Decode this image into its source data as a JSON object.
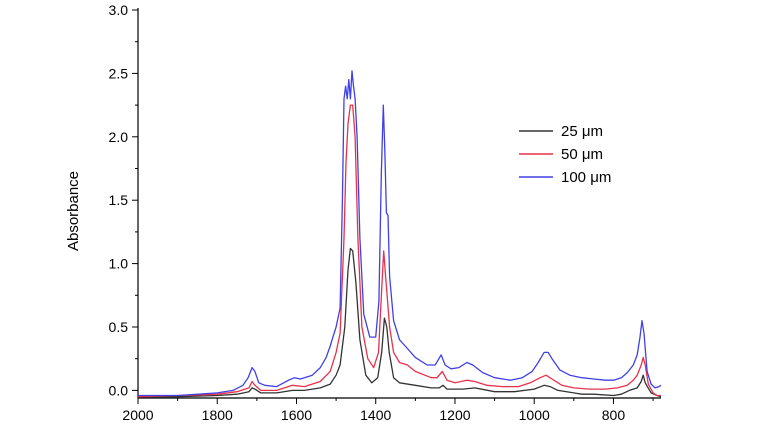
{
  "chart_data": {
    "type": "line",
    "title": "",
    "xlabel": "",
    "ylabel": "Absorbance",
    "xlim": [
      2000,
      680
    ],
    "ylim": [
      -0.06,
      3.0
    ],
    "x_reversed": true,
    "grid": false,
    "legend_position": "right",
    "x_ticks": [
      2000,
      1800,
      1600,
      1400,
      1200,
      1000,
      800
    ],
    "x_tick_labels": [
      "2000",
      "1800",
      "1600",
      "1400",
      "1200",
      "1000",
      "800"
    ],
    "y_ticks": [
      0.0,
      0.5,
      1.0,
      1.5,
      2.0,
      2.5,
      3.0
    ],
    "y_tick_labels": [
      "0.0",
      "0.5",
      "1.0",
      "1.5",
      "2.0",
      "2.5",
      "3.0"
    ],
    "series": [
      {
        "name": "25 μm",
        "color": "#333333",
        "points": [
          [
            2000,
            -0.05
          ],
          [
            1900,
            -0.05
          ],
          [
            1800,
            -0.04
          ],
          [
            1750,
            -0.03
          ],
          [
            1720,
            -0.01
          ],
          [
            1712,
            0.02
          ],
          [
            1705,
            0.01
          ],
          [
            1690,
            -0.02
          ],
          [
            1650,
            -0.02
          ],
          [
            1610,
            0.0
          ],
          [
            1580,
            0.0
          ],
          [
            1540,
            0.02
          ],
          [
            1515,
            0.05
          ],
          [
            1500,
            0.12
          ],
          [
            1490,
            0.2
          ],
          [
            1478,
            0.5
          ],
          [
            1470,
            0.95
          ],
          [
            1464,
            1.12
          ],
          [
            1458,
            1.1
          ],
          [
            1450,
            0.85
          ],
          [
            1440,
            0.4
          ],
          [
            1425,
            0.12
          ],
          [
            1410,
            0.06
          ],
          [
            1395,
            0.1
          ],
          [
            1385,
            0.3
          ],
          [
            1378,
            0.57
          ],
          [
            1372,
            0.5
          ],
          [
            1366,
            0.3
          ],
          [
            1355,
            0.1
          ],
          [
            1340,
            0.06
          ],
          [
            1300,
            0.04
          ],
          [
            1260,
            0.02
          ],
          [
            1240,
            0.02
          ],
          [
            1230,
            0.04
          ],
          [
            1220,
            0.01
          ],
          [
            1180,
            0.01
          ],
          [
            1150,
            0.02
          ],
          [
            1100,
            -0.01
          ],
          [
            1050,
            -0.01
          ],
          [
            1000,
            0.01
          ],
          [
            975,
            0.04
          ],
          [
            960,
            0.03
          ],
          [
            940,
            0.0
          ],
          [
            900,
            -0.02
          ],
          [
            880,
            -0.03
          ],
          [
            850,
            -0.03
          ],
          [
            800,
            -0.04
          ],
          [
            780,
            -0.03
          ],
          [
            760,
            0.0
          ],
          [
            740,
            0.02
          ],
          [
            730,
            0.07
          ],
          [
            725,
            0.12
          ],
          [
            720,
            0.06
          ],
          [
            705,
            -0.02
          ],
          [
            690,
            -0.04
          ],
          [
            680,
            -0.05
          ]
        ]
      },
      {
        "name": "50 μm",
        "color": "#e8314a",
        "points": [
          [
            2000,
            -0.05
          ],
          [
            1900,
            -0.04
          ],
          [
            1800,
            -0.03
          ],
          [
            1750,
            -0.01
          ],
          [
            1720,
            0.02
          ],
          [
            1712,
            0.07
          ],
          [
            1705,
            0.04
          ],
          [
            1690,
            0.0
          ],
          [
            1650,
            0.0
          ],
          [
            1610,
            0.04
          ],
          [
            1580,
            0.03
          ],
          [
            1540,
            0.07
          ],
          [
            1515,
            0.15
          ],
          [
            1500,
            0.3
          ],
          [
            1490,
            0.45
          ],
          [
            1480,
            1.2
          ],
          [
            1475,
            1.8
          ],
          [
            1470,
            2.1
          ],
          [
            1464,
            2.25
          ],
          [
            1458,
            2.25
          ],
          [
            1452,
            2.0
          ],
          [
            1445,
            1.2
          ],
          [
            1435,
            0.5
          ],
          [
            1420,
            0.25
          ],
          [
            1405,
            0.18
          ],
          [
            1393,
            0.3
          ],
          [
            1385,
            0.8
          ],
          [
            1380,
            1.1
          ],
          [
            1375,
            0.9
          ],
          [
            1370,
            0.7
          ],
          [
            1365,
            0.5
          ],
          [
            1355,
            0.3
          ],
          [
            1340,
            0.22
          ],
          [
            1320,
            0.2
          ],
          [
            1300,
            0.15
          ],
          [
            1260,
            0.1
          ],
          [
            1245,
            0.1
          ],
          [
            1232,
            0.15
          ],
          [
            1220,
            0.08
          ],
          [
            1200,
            0.06
          ],
          [
            1170,
            0.08
          ],
          [
            1150,
            0.07
          ],
          [
            1120,
            0.04
          ],
          [
            1080,
            0.03
          ],
          [
            1040,
            0.03
          ],
          [
            1010,
            0.06
          ],
          [
            985,
            0.1
          ],
          [
            970,
            0.12
          ],
          [
            955,
            0.09
          ],
          [
            930,
            0.04
          ],
          [
            900,
            0.02
          ],
          [
            860,
            0.01
          ],
          [
            820,
            0.01
          ],
          [
            790,
            0.02
          ],
          [
            765,
            0.04
          ],
          [
            750,
            0.08
          ],
          [
            740,
            0.12
          ],
          [
            730,
            0.2
          ],
          [
            725,
            0.26
          ],
          [
            720,
            0.2
          ],
          [
            712,
            0.05
          ],
          [
            700,
            -0.02
          ],
          [
            690,
            -0.04
          ],
          [
            680,
            -0.04
          ]
        ]
      },
      {
        "name": "100 μm",
        "color": "#4040e6",
        "points": [
          [
            2000,
            -0.04
          ],
          [
            1900,
            -0.04
          ],
          [
            1800,
            -0.02
          ],
          [
            1760,
            0.0
          ],
          [
            1735,
            0.04
          ],
          [
            1722,
            0.1
          ],
          [
            1712,
            0.18
          ],
          [
            1705,
            0.15
          ],
          [
            1695,
            0.06
          ],
          [
            1680,
            0.04
          ],
          [
            1650,
            0.03
          ],
          [
            1620,
            0.08
          ],
          [
            1605,
            0.1
          ],
          [
            1590,
            0.09
          ],
          [
            1560,
            0.12
          ],
          [
            1540,
            0.18
          ],
          [
            1525,
            0.26
          ],
          [
            1515,
            0.35
          ],
          [
            1510,
            0.4
          ],
          [
            1500,
            0.5
          ],
          [
            1490,
            0.65
          ],
          [
            1484,
            1.5
          ],
          [
            1480,
            2.3
          ],
          [
            1476,
            2.4
          ],
          [
            1472,
            2.3
          ],
          [
            1468,
            2.45
          ],
          [
            1464,
            2.3
          ],
          [
            1460,
            2.52
          ],
          [
            1456,
            2.4
          ],
          [
            1452,
            2.3
          ],
          [
            1447,
            2.0
          ],
          [
            1440,
            1.2
          ],
          [
            1430,
            0.6
          ],
          [
            1415,
            0.42
          ],
          [
            1400,
            0.42
          ],
          [
            1392,
            0.7
          ],
          [
            1386,
            1.7
          ],
          [
            1381,
            2.25
          ],
          [
            1377,
            1.9
          ],
          [
            1373,
            1.4
          ],
          [
            1369,
            1.38
          ],
          [
            1365,
            0.9
          ],
          [
            1355,
            0.55
          ],
          [
            1340,
            0.4
          ],
          [
            1320,
            0.33
          ],
          [
            1300,
            0.26
          ],
          [
            1270,
            0.2
          ],
          [
            1250,
            0.2
          ],
          [
            1235,
            0.28
          ],
          [
            1225,
            0.2
          ],
          [
            1210,
            0.17
          ],
          [
            1190,
            0.18
          ],
          [
            1170,
            0.22
          ],
          [
            1155,
            0.2
          ],
          [
            1130,
            0.14
          ],
          [
            1100,
            0.1
          ],
          [
            1060,
            0.08
          ],
          [
            1030,
            0.1
          ],
          [
            1005,
            0.15
          ],
          [
            990,
            0.22
          ],
          [
            975,
            0.3
          ],
          [
            965,
            0.3
          ],
          [
            955,
            0.25
          ],
          [
            935,
            0.16
          ],
          [
            910,
            0.12
          ],
          [
            880,
            0.1
          ],
          [
            850,
            0.09
          ],
          [
            820,
            0.08
          ],
          [
            800,
            0.08
          ],
          [
            780,
            0.1
          ],
          [
            765,
            0.14
          ],
          [
            750,
            0.2
          ],
          [
            740,
            0.28
          ],
          [
            733,
            0.42
          ],
          [
            728,
            0.55
          ],
          [
            723,
            0.45
          ],
          [
            715,
            0.15
          ],
          [
            705,
            0.05
          ],
          [
            695,
            0.02
          ],
          [
            685,
            0.03
          ],
          [
            680,
            0.04
          ]
        ]
      }
    ]
  }
}
